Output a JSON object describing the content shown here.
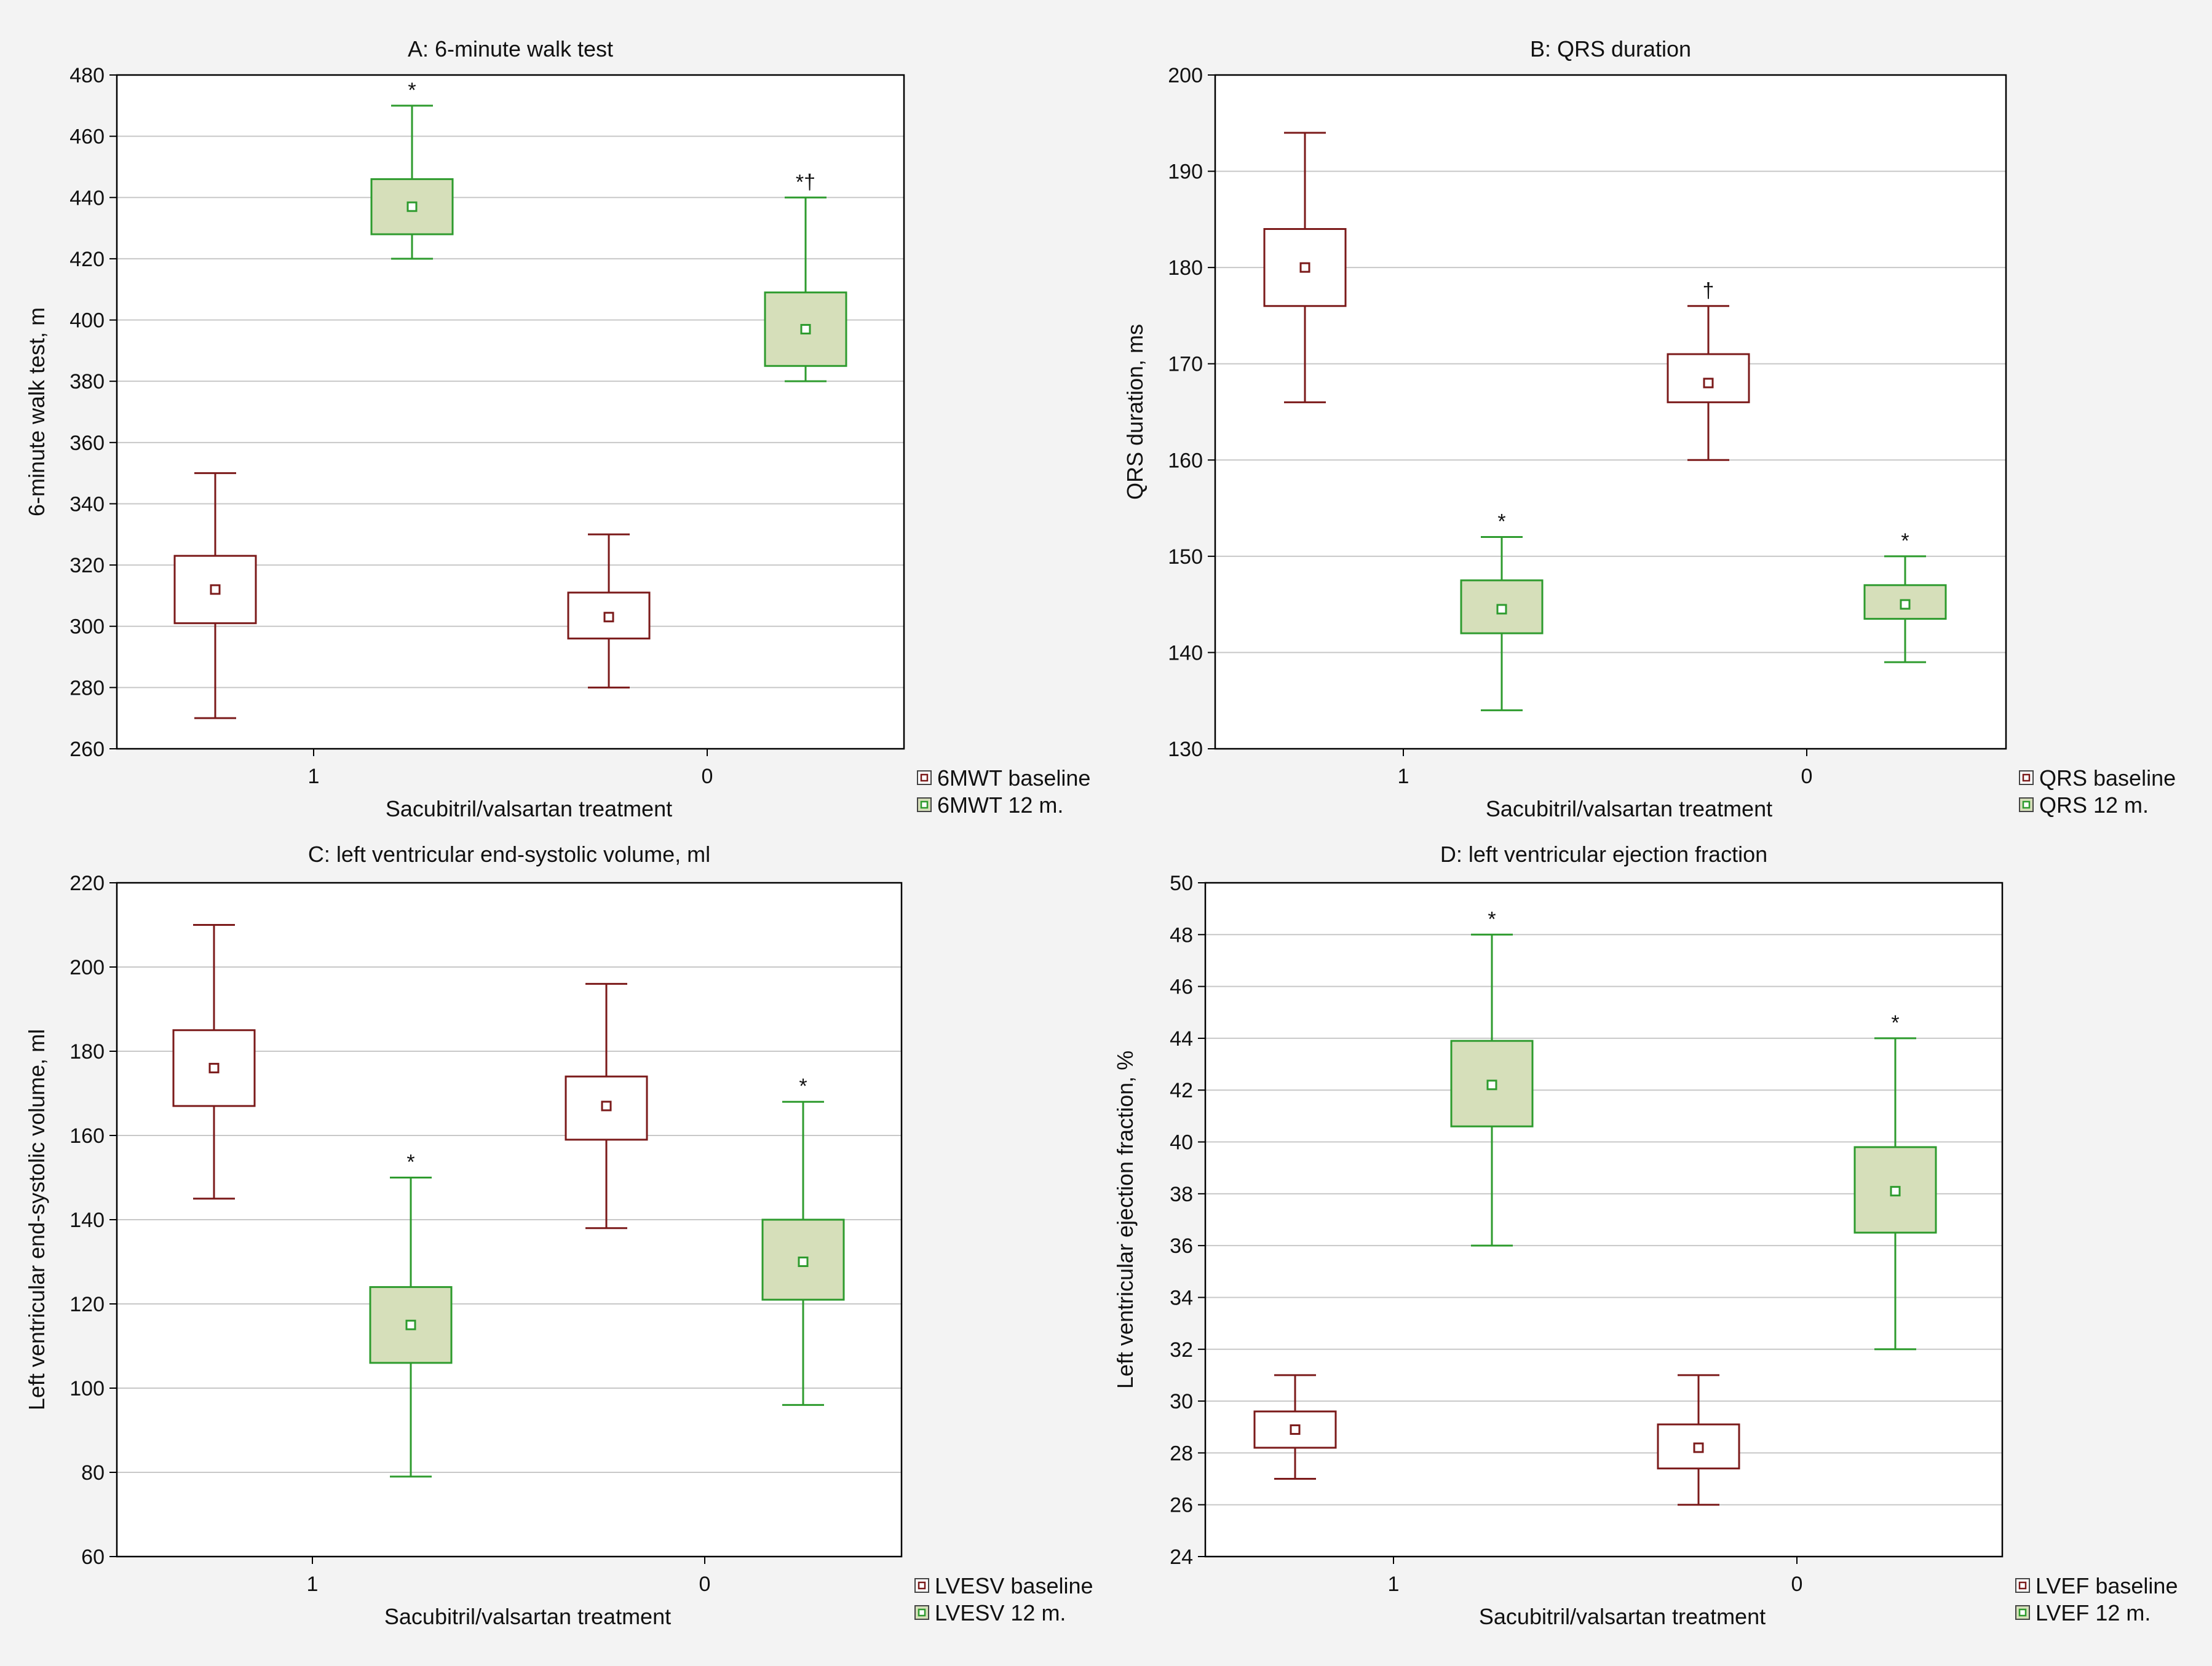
{
  "colors": {
    "baseline_stroke": "#7b1a1a",
    "followup_stroke": "#2e9b2e",
    "followup_fill": "#d6dfba",
    "grid": "#c8c8c8",
    "plot_bg": "#ffffff",
    "page_bg": "#f3f3f3"
  },
  "chart_data": [
    {
      "id": "A",
      "type": "box",
      "title": "A: 6-minute walk test",
      "xlabel": "Sacubitril/valsartan treatment",
      "ylabel": "6-minute walk test, m",
      "ylim": [
        260,
        480
      ],
      "yticks": [
        260,
        280,
        300,
        320,
        340,
        360,
        380,
        400,
        420,
        440,
        460,
        480
      ],
      "categories": [
        "1",
        "0"
      ],
      "legend": [
        "6MWT baseline",
        "6MWT 12 m."
      ],
      "series": [
        {
          "name": "6MWT baseline",
          "boxes": [
            {
              "category": "1",
              "mean": 312,
              "box_low": 301,
              "box_high": 323,
              "whisker_low": 270,
              "whisker_high": 350,
              "marker": ""
            },
            {
              "category": "0",
              "mean": 303,
              "box_low": 296,
              "box_high": 311,
              "whisker_low": 280,
              "whisker_high": 330,
              "marker": ""
            }
          ]
        },
        {
          "name": "6MWT 12 m.",
          "boxes": [
            {
              "category": "1",
              "mean": 437,
              "box_low": 428,
              "box_high": 446,
              "whisker_low": 420,
              "whisker_high": 470,
              "marker": "*"
            },
            {
              "category": "0",
              "mean": 397,
              "box_low": 385,
              "box_high": 409,
              "whisker_low": 380,
              "whisker_high": 440,
              "marker": "*†"
            }
          ]
        }
      ]
    },
    {
      "id": "B",
      "type": "box",
      "title": "B: QRS duration",
      "xlabel": "Sacubitril/valsartan treatment",
      "ylabel": "QRS duration, ms",
      "ylim": [
        130,
        200
      ],
      "yticks": [
        130,
        140,
        150,
        160,
        170,
        180,
        190,
        200
      ],
      "categories": [
        "1",
        "0"
      ],
      "legend": [
        "QRS baseline",
        "QRS 12 m."
      ],
      "series": [
        {
          "name": "QRS baseline",
          "boxes": [
            {
              "category": "1",
              "mean": 180,
              "box_low": 176,
              "box_high": 184,
              "whisker_low": 166,
              "whisker_high": 194,
              "marker": ""
            },
            {
              "category": "0",
              "mean": 168,
              "box_low": 166,
              "box_high": 171,
              "whisker_low": 160,
              "whisker_high": 176,
              "marker": "†"
            }
          ]
        },
        {
          "name": "QRS 12 m.",
          "boxes": [
            {
              "category": "1",
              "mean": 144.5,
              "box_low": 142,
              "box_high": 147.5,
              "whisker_low": 134,
              "whisker_high": 152,
              "marker": "*"
            },
            {
              "category": "0",
              "mean": 145,
              "box_low": 143.5,
              "box_high": 147,
              "whisker_low": 139,
              "whisker_high": 150,
              "marker": "*"
            }
          ]
        }
      ]
    },
    {
      "id": "C",
      "type": "box",
      "title": "C: left ventricular end-systolic volume, ml",
      "xlabel": "Sacubitril/valsartan treatment",
      "ylabel": "Left ventricular end-systolic volume, ml",
      "ylim": [
        60,
        220
      ],
      "yticks": [
        60,
        80,
        100,
        120,
        140,
        160,
        180,
        200,
        220
      ],
      "categories": [
        "1",
        "0"
      ],
      "legend": [
        "LVESV baseline",
        "LVESV 12 m."
      ],
      "series": [
        {
          "name": "LVESV baseline",
          "boxes": [
            {
              "category": "1",
              "mean": 176,
              "box_low": 167,
              "box_high": 185,
              "whisker_low": 145,
              "whisker_high": 210,
              "marker": ""
            },
            {
              "category": "0",
              "mean": 167,
              "box_low": 159,
              "box_high": 174,
              "whisker_low": 138,
              "whisker_high": 196,
              "marker": ""
            }
          ]
        },
        {
          "name": "LVESV 12 m.",
          "boxes": [
            {
              "category": "1",
              "mean": 115,
              "box_low": 106,
              "box_high": 124,
              "whisker_low": 79,
              "whisker_high": 150,
              "marker": "*"
            },
            {
              "category": "0",
              "mean": 130,
              "box_low": 121,
              "box_high": 140,
              "whisker_low": 96,
              "whisker_high": 168,
              "marker": "*"
            }
          ]
        }
      ]
    },
    {
      "id": "D",
      "type": "box",
      "title": "D: left ventricular ejection fraction",
      "xlabel": "Sacubitril/valsartan treatment",
      "ylabel": "Left ventricular ejection fraction, %",
      "ylim": [
        24,
        50
      ],
      "yticks": [
        24,
        26,
        28,
        30,
        32,
        34,
        36,
        38,
        40,
        42,
        44,
        46,
        48,
        50
      ],
      "categories": [
        "1",
        "0"
      ],
      "legend": [
        "LVEF baseline",
        "LVEF 12 m."
      ],
      "series": [
        {
          "name": "LVEF baseline",
          "boxes": [
            {
              "category": "1",
              "mean": 28.9,
              "box_low": 28.2,
              "box_high": 29.6,
              "whisker_low": 27,
              "whisker_high": 31,
              "marker": ""
            },
            {
              "category": "0",
              "mean": 28.2,
              "box_low": 27.4,
              "box_high": 29.1,
              "whisker_low": 26,
              "whisker_high": 31,
              "marker": ""
            }
          ]
        },
        {
          "name": "LVEF 12 m.",
          "boxes": [
            {
              "category": "1",
              "mean": 42.2,
              "box_low": 40.6,
              "box_high": 43.9,
              "whisker_low": 36,
              "whisker_high": 48,
              "marker": "*"
            },
            {
              "category": "0",
              "mean": 38.1,
              "box_low": 36.5,
              "box_high": 39.8,
              "whisker_low": 32,
              "whisker_high": 44,
              "marker": "*"
            }
          ]
        }
      ]
    }
  ]
}
